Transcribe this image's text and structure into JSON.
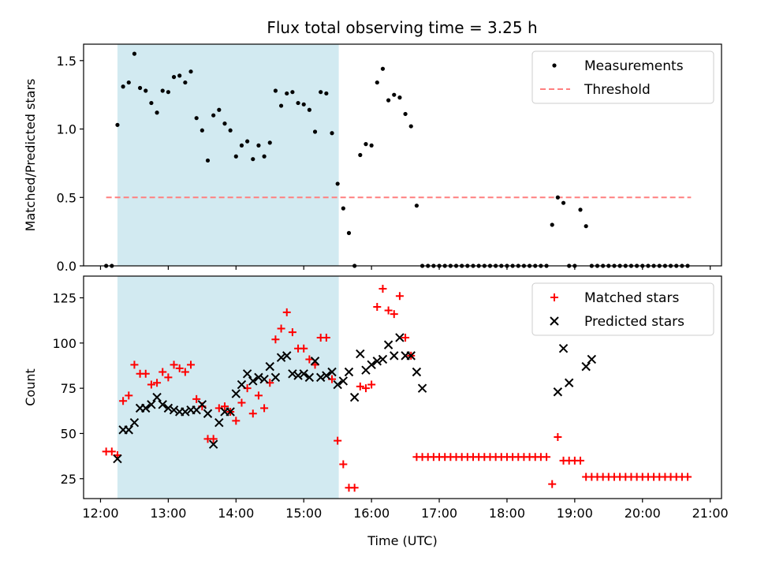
{
  "figure": {
    "title": "Flux total observing time = 3.25 h"
  },
  "colors": {
    "shade": "#add8e6",
    "threshold": "#ff7f7f",
    "measurement": "#000000",
    "matched": "#ff0000",
    "predicted": "#000000"
  },
  "chart_data": [
    {
      "type": "scatter",
      "ylabel": "Matched/Predicted stars",
      "ylim": [
        0,
        1.62
      ],
      "yticks": [
        0,
        0.5,
        1.0,
        1.5
      ],
      "ytick_labels": [
        "0.0",
        "0.5",
        "1.0",
        "1.5"
      ],
      "shaded_span": [
        "12:15",
        "15:31"
      ],
      "legend": {
        "position": "top-right",
        "entries": [
          "Measurements",
          "Threshold"
        ]
      },
      "threshold": {
        "name": "Threshold",
        "value": 0.5,
        "x_range": [
          "12:05",
          "20:43"
        ]
      },
      "series": [
        {
          "name": "Measurements",
          "marker": "dot",
          "x": [
            "12:05",
            "12:10",
            "12:15",
            "12:20",
            "12:25",
            "12:30",
            "12:35",
            "12:40",
            "12:45",
            "12:50",
            "12:55",
            "13:00",
            "13:05",
            "13:10",
            "13:15",
            "13:20",
            "13:25",
            "13:30",
            "13:35",
            "13:40",
            "13:45",
            "13:50",
            "13:55",
            "14:00",
            "14:05",
            "14:10",
            "14:15",
            "14:20",
            "14:25",
            "14:30",
            "14:35",
            "14:40",
            "14:45",
            "14:50",
            "14:55",
            "15:00",
            "15:05",
            "15:10",
            "15:15",
            "15:20",
            "15:25",
            "15:30",
            "15:35",
            "15:40",
            "15:45",
            "15:50",
            "15:55",
            "16:00",
            "16:05",
            "16:10",
            "16:15",
            "16:20",
            "16:25",
            "16:30",
            "16:35",
            "16:40",
            "16:45",
            "16:50",
            "16:55",
            "17:00",
            "17:05",
            "17:10",
            "17:15",
            "17:20",
            "17:25",
            "17:30",
            "17:35",
            "17:40",
            "17:45",
            "17:50",
            "17:55",
            "18:00",
            "18:05",
            "18:10",
            "18:15",
            "18:20",
            "18:25",
            "18:30",
            "18:35",
            "18:40",
            "18:45",
            "18:50",
            "18:55",
            "19:00",
            "19:05",
            "19:10",
            "19:15",
            "19:20",
            "19:25",
            "19:30",
            "19:35",
            "19:40",
            "19:45",
            "19:50",
            "19:55",
            "20:00",
            "20:05",
            "20:10",
            "20:15",
            "20:20",
            "20:25",
            "20:30",
            "20:35",
            "20:40"
          ],
          "y": [
            0,
            0,
            1.03,
            1.31,
            1.34,
            1.55,
            1.3,
            1.28,
            1.19,
            1.12,
            1.28,
            1.27,
            1.38,
            1.39,
            1.34,
            1.42,
            1.08,
            0.99,
            0.77,
            1.1,
            1.14,
            1.04,
            0.99,
            0.8,
            0.88,
            0.91,
            0.78,
            0.88,
            0.8,
            0.9,
            1.28,
            1.17,
            1.26,
            1.27,
            1.19,
            1.18,
            1.14,
            0.98,
            1.27,
            1.26,
            0.97,
            0.6,
            0.42,
            0.24,
            0,
            0.81,
            0.89,
            0.88,
            1.34,
            1.44,
            1.21,
            1.25,
            1.23,
            1.11,
            1.02,
            0.44,
            0,
            0,
            0,
            0,
            0,
            0,
            0,
            0,
            0,
            0,
            0,
            0,
            0,
            0,
            0,
            0,
            0,
            0,
            0,
            0,
            0,
            0,
            0,
            0.3,
            0.5,
            0.46,
            0,
            0,
            0.41,
            0.29,
            0,
            0,
            0,
            0,
            0,
            0,
            0,
            0,
            0,
            0,
            0,
            0,
            0,
            0,
            0,
            0,
            0,
            0
          ]
        }
      ]
    },
    {
      "type": "scatter",
      "xlabel": "Time (UTC)",
      "ylabel": "Count",
      "ylim": [
        14,
        137
      ],
      "yticks": [
        25,
        50,
        75,
        100,
        125
      ],
      "ytick_labels": [
        "25",
        "50",
        "75",
        "100",
        "125"
      ],
      "xlim": [
        "11:45",
        "21:10"
      ],
      "xticks": [
        "12:00",
        "13:00",
        "14:00",
        "15:00",
        "16:00",
        "17:00",
        "18:00",
        "19:00",
        "20:00",
        "21:00"
      ],
      "shaded_span": [
        "12:15",
        "15:31"
      ],
      "legend": {
        "position": "top-right",
        "entries": [
          "Matched stars",
          "Predicted stars"
        ]
      },
      "series": [
        {
          "name": "Matched stars",
          "marker": "plus",
          "x": [
            "12:05",
            "12:10",
            "12:15",
            "12:20",
            "12:25",
            "12:30",
            "12:35",
            "12:40",
            "12:45",
            "12:50",
            "12:55",
            "13:00",
            "13:05",
            "13:10",
            "13:15",
            "13:20",
            "13:25",
            "13:30",
            "13:35",
            "13:40",
            "13:45",
            "13:50",
            "13:55",
            "14:00",
            "14:05",
            "14:10",
            "14:15",
            "14:20",
            "14:25",
            "14:30",
            "14:35",
            "14:40",
            "14:45",
            "14:50",
            "14:55",
            "15:00",
            "15:05",
            "15:10",
            "15:15",
            "15:20",
            "15:25",
            "15:30",
            "15:35",
            "15:40",
            "15:45",
            "15:50",
            "15:55",
            "16:00",
            "16:05",
            "16:10",
            "16:15",
            "16:20",
            "16:25",
            "16:30",
            "16:35",
            "16:40",
            "16:45",
            "16:50",
            "16:55",
            "17:00",
            "17:05",
            "17:10",
            "17:15",
            "17:20",
            "17:25",
            "17:30",
            "17:35",
            "17:40",
            "17:45",
            "17:50",
            "17:55",
            "18:00",
            "18:05",
            "18:10",
            "18:15",
            "18:20",
            "18:25",
            "18:30",
            "18:35",
            "18:40",
            "18:45",
            "18:50",
            "18:55",
            "19:00",
            "19:05",
            "19:10",
            "19:15",
            "19:20",
            "19:25",
            "19:30",
            "19:35",
            "19:40",
            "19:45",
            "19:50",
            "19:55",
            "20:00",
            "20:05",
            "20:10",
            "20:15",
            "20:20",
            "20:25",
            "20:30",
            "20:35",
            "20:40"
          ],
          "y": [
            40,
            40,
            38,
            68,
            71,
            88,
            83,
            83,
            77,
            78,
            84,
            81,
            88,
            86,
            84,
            88,
            69,
            65,
            47,
            47,
            64,
            65,
            62,
            57,
            67,
            75,
            61,
            71,
            64,
            78,
            102,
            108,
            117,
            106,
            97,
            97,
            91,
            88,
            103,
            103,
            80,
            46,
            33,
            20,
            20,
            76,
            75,
            77,
            120,
            130,
            118,
            116,
            126,
            103,
            93,
            37,
            37,
            37,
            37,
            37,
            37,
            37,
            37,
            37,
            37,
            37,
            37,
            37,
            37,
            37,
            37,
            37,
            37,
            37,
            37,
            37,
            37,
            37,
            37,
            22,
            48,
            35,
            35,
            35,
            35,
            26,
            26,
            26,
            26,
            26,
            26,
            26,
            26,
            26,
            26,
            26,
            26,
            26,
            26,
            26,
            26,
            26,
            26,
            26
          ]
        },
        {
          "name": "Predicted stars",
          "marker": "x",
          "x": [
            "12:15",
            "12:20",
            "12:25",
            "12:30",
            "12:35",
            "12:40",
            "12:45",
            "12:50",
            "12:55",
            "13:00",
            "13:05",
            "13:10",
            "13:15",
            "13:20",
            "13:25",
            "13:30",
            "13:35",
            "13:40",
            "13:45",
            "13:50",
            "13:55",
            "14:00",
            "14:05",
            "14:10",
            "14:15",
            "14:20",
            "14:25",
            "14:30",
            "14:35",
            "14:40",
            "14:45",
            "14:50",
            "14:55",
            "15:00",
            "15:05",
            "15:10",
            "15:15",
            "15:20",
            "15:25",
            "15:30",
            "15:35",
            "15:40",
            "15:45",
            "15:50",
            "15:55",
            "16:00",
            "16:05",
            "16:10",
            "16:15",
            "16:20",
            "16:25",
            "16:30",
            "16:35",
            "16:40",
            "16:45",
            "18:45",
            "18:50",
            "18:55",
            "19:10",
            "19:15"
          ],
          "y": [
            36,
            52,
            52,
            56,
            64,
            64,
            66,
            70,
            66,
            64,
            63,
            62,
            62,
            63,
            63,
            66,
            61,
            44,
            56,
            62,
            62,
            72,
            77,
            83,
            79,
            81,
            80,
            87,
            81,
            92,
            93,
            83,
            82,
            83,
            81,
            90,
            81,
            82,
            84,
            77,
            79,
            84,
            70,
            94,
            85,
            88,
            90,
            91,
            99,
            93,
            103,
            93,
            93,
            84,
            75,
            73,
            97,
            78,
            87,
            91
          ]
        }
      ]
    }
  ]
}
